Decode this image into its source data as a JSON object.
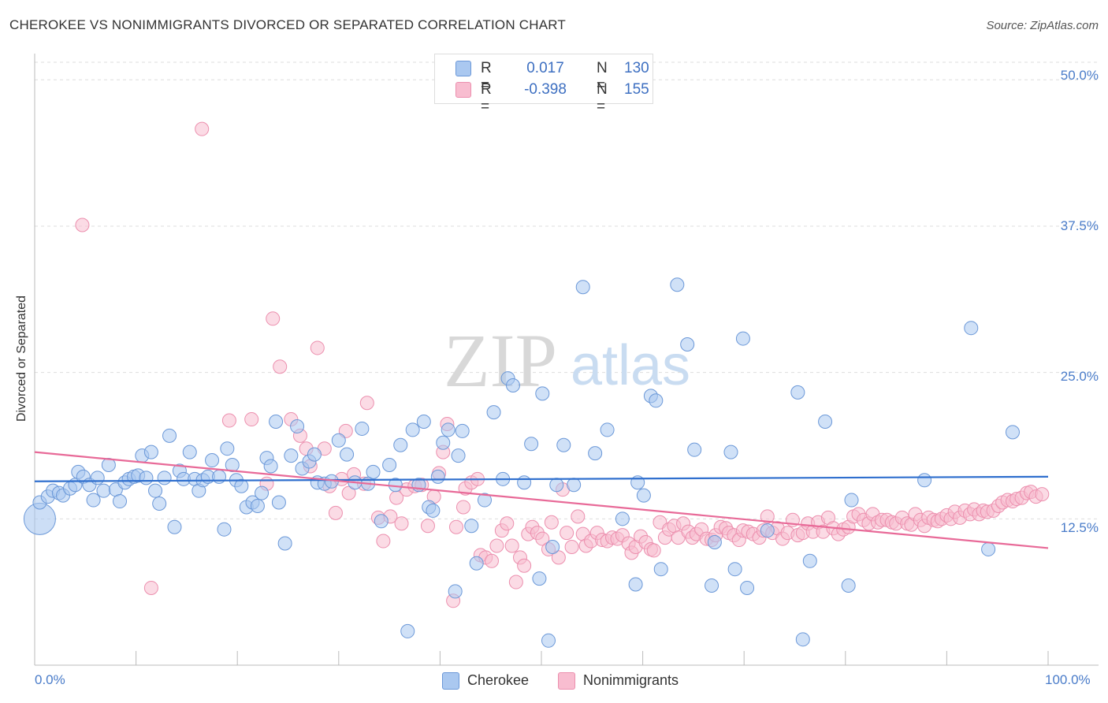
{
  "title": "CHEROKEE VS NONIMMIGRANTS DIVORCED OR SEPARATED CORRELATION CHART",
  "source": "Source: ZipAtlas.com",
  "watermark": {
    "zip": "ZIP",
    "atlas": "atlas"
  },
  "legend": {
    "r_label": "R =",
    "n_label": "N =",
    "rows": [
      {
        "r": "0.017",
        "n": "130"
      },
      {
        "r": "-0.398",
        "n": "155"
      }
    ]
  },
  "colors": {
    "cherokee_fill": "#aac8f0",
    "cherokee_stroke": "#6b98d8",
    "cherokee_line": "#2f6fce",
    "nonimm_fill": "#f8bdd0",
    "nonimm_stroke": "#ec8fae",
    "nonimm_line": "#e86a98",
    "tick_text": "#4a7cc9",
    "grid": "#dddddd"
  },
  "chart_data": {
    "type": "scatter",
    "title": "CHEROKEE VS NONIMMIGRANTS DIVORCED OR SEPARATED CORRELATION CHART",
    "xlabel": "",
    "ylabel": "Divorced or Separated",
    "xlim": [
      0,
      100
    ],
    "ylim": [
      0,
      51.5
    ],
    "x_tick_labels": [
      "0.0%",
      "100.0%"
    ],
    "y_ticks": [
      12.5,
      25.0,
      37.5,
      50.0
    ],
    "y_tick_labels": [
      "12.5%",
      "25.0%",
      "37.5%",
      "50.0%"
    ],
    "grid": "horizontal dashed",
    "legend_position": "top-center",
    "series": [
      {
        "name": "Cherokee",
        "r": 0.017,
        "n": 130,
        "trend": [
          [
            0,
            15.7
          ],
          [
            100,
            16.1
          ]
        ],
        "points": [
          [
            0.5,
            13.9
          ],
          [
            1.3,
            14.4
          ],
          [
            1.8,
            14.9
          ],
          [
            2.4,
            14.7
          ],
          [
            2.8,
            14.5
          ],
          [
            3.5,
            15.1
          ],
          [
            4,
            15.4
          ],
          [
            4.3,
            16.5
          ],
          [
            4.8,
            16.1
          ],
          [
            5.4,
            15.4
          ],
          [
            5.8,
            14.1
          ],
          [
            6.2,
            16
          ],
          [
            6.8,
            14.9
          ],
          [
            7.3,
            17.1
          ],
          [
            8,
            15
          ],
          [
            8.4,
            14
          ],
          [
            8.9,
            15.6
          ],
          [
            9.3,
            15.9
          ],
          [
            9.8,
            16.1
          ],
          [
            10.2,
            16.2
          ],
          [
            10.6,
            17.9
          ],
          [
            11,
            16
          ],
          [
            11.5,
            18.2
          ],
          [
            11.9,
            14.9
          ],
          [
            12.3,
            13.8
          ],
          [
            12.8,
            16
          ],
          [
            13.3,
            19.6
          ],
          [
            13.8,
            11.8
          ],
          [
            14.3,
            16.6
          ],
          [
            14.7,
            15.9
          ],
          [
            15.3,
            18.2
          ],
          [
            15.8,
            15.9
          ],
          [
            16.2,
            14.9
          ],
          [
            16.6,
            15.8
          ],
          [
            17.1,
            16.1
          ],
          [
            17.5,
            17.5
          ],
          [
            18.2,
            16.1
          ],
          [
            18.7,
            11.6
          ],
          [
            19,
            18.5
          ],
          [
            19.5,
            17.1
          ],
          [
            19.9,
            15.8
          ],
          [
            20.4,
            15.3
          ],
          [
            20.9,
            13.5
          ],
          [
            21.5,
            13.9
          ],
          [
            22,
            13.6
          ],
          [
            22.4,
            14.7
          ],
          [
            22.9,
            17.7
          ],
          [
            23.3,
            17
          ],
          [
            23.8,
            20.8
          ],
          [
            24.1,
            13.9
          ],
          [
            24.7,
            10.4
          ],
          [
            25.3,
            17.9
          ],
          [
            25.9,
            20.4
          ],
          [
            26.4,
            16.8
          ],
          [
            27.1,
            17.4
          ],
          [
            27.6,
            18
          ],
          [
            27.9,
            15.6
          ],
          [
            28.6,
            15.5
          ],
          [
            29.3,
            15.7
          ],
          [
            30,
            19.2
          ],
          [
            30.8,
            18
          ],
          [
            31.6,
            15.6
          ],
          [
            32.3,
            20.2
          ],
          [
            32.9,
            15.5
          ],
          [
            33.4,
            16.5
          ],
          [
            34.2,
            12.3
          ],
          [
            35,
            17.1
          ],
          [
            35.6,
            15.4
          ],
          [
            36.1,
            18.8
          ],
          [
            36.8,
            2.9
          ],
          [
            37.3,
            20.1
          ],
          [
            37.9,
            15.4
          ],
          [
            38.4,
            20.8
          ],
          [
            38.9,
            13.5
          ],
          [
            39.3,
            13.2
          ],
          [
            39.8,
            16.1
          ],
          [
            40.3,
            19
          ],
          [
            40.8,
            20.1
          ],
          [
            41.5,
            6.3
          ],
          [
            41.8,
            17.9
          ],
          [
            42.2,
            20
          ],
          [
            43.1,
            11.9
          ],
          [
            43.6,
            8.7
          ],
          [
            44.4,
            14.1
          ],
          [
            45.3,
            21.6
          ],
          [
            46.2,
            15.9
          ],
          [
            46.7,
            24.5
          ],
          [
            47.2,
            23.9
          ],
          [
            48.3,
            15.6
          ],
          [
            49,
            18.9
          ],
          [
            49.8,
            7.4
          ],
          [
            50.1,
            23.2
          ],
          [
            50.7,
            2.1
          ],
          [
            51.1,
            10.1
          ],
          [
            51.5,
            15.4
          ],
          [
            52.2,
            18.8
          ],
          [
            53.2,
            15.4
          ],
          [
            54.1,
            32.3
          ],
          [
            55.3,
            18.1
          ],
          [
            56.5,
            20.1
          ],
          [
            58,
            12.5
          ],
          [
            59.3,
            6.9
          ],
          [
            59.5,
            15.6
          ],
          [
            60.1,
            14.5
          ],
          [
            60.8,
            23
          ],
          [
            61.3,
            22.6
          ],
          [
            61.8,
            8.2
          ],
          [
            63.4,
            32.5
          ],
          [
            64.4,
            27.4
          ],
          [
            65.1,
            18.4
          ],
          [
            66.8,
            6.8
          ],
          [
            67.1,
            10.5
          ],
          [
            68.7,
            18.2
          ],
          [
            69.1,
            8.2
          ],
          [
            69.9,
            27.9
          ],
          [
            70.3,
            6.6
          ],
          [
            72.3,
            11.5
          ],
          [
            75.3,
            23.3
          ],
          [
            75.8,
            2.2
          ],
          [
            76.5,
            8.9
          ],
          [
            78,
            20.8
          ],
          [
            80.3,
            6.8
          ],
          [
            80.6,
            14.1
          ],
          [
            87.8,
            15.8
          ],
          [
            92.4,
            28.8
          ],
          [
            94.1,
            9.9
          ],
          [
            96.5,
            19.9
          ]
        ],
        "big_point": [
          0.5,
          12.5
        ]
      },
      {
        "name": "Nonimmigrants",
        "r": -0.398,
        "n": 155,
        "trend": [
          [
            0,
            18.2
          ],
          [
            100,
            10
          ]
        ],
        "points": [
          [
            4.7,
            37.6
          ],
          [
            11.5,
            6.6
          ],
          [
            16.5,
            45.8
          ],
          [
            19.2,
            20.9
          ],
          [
            21.4,
            21
          ],
          [
            22.9,
            15.5
          ],
          [
            23.5,
            29.6
          ],
          [
            24.2,
            25.5
          ],
          [
            25.3,
            21
          ],
          [
            26.2,
            19.6
          ],
          [
            26.8,
            18.5
          ],
          [
            27.2,
            17
          ],
          [
            27.9,
            27.1
          ],
          [
            28.6,
            18.5
          ],
          [
            29.1,
            15.3
          ],
          [
            29.7,
            13
          ],
          [
            30.3,
            15.9
          ],
          [
            30.7,
            20
          ],
          [
            31,
            14.7
          ],
          [
            31.5,
            16.3
          ],
          [
            32.5,
            15.5
          ],
          [
            32.8,
            22.4
          ],
          [
            33.9,
            12.6
          ],
          [
            34.4,
            10.6
          ],
          [
            35.1,
            12.7
          ],
          [
            35.7,
            14.3
          ],
          [
            36.2,
            12.1
          ],
          [
            36.7,
            15
          ],
          [
            37.5,
            15.3
          ],
          [
            38.2,
            15.4
          ],
          [
            38.8,
            11.9
          ],
          [
            39.4,
            14.4
          ],
          [
            39.9,
            16.4
          ],
          [
            40.3,
            18.2
          ],
          [
            40.7,
            20.6
          ],
          [
            41.3,
            5.5
          ],
          [
            41.6,
            11.8
          ],
          [
            42.3,
            13.5
          ],
          [
            42.5,
            15.1
          ],
          [
            43.1,
            15.6
          ],
          [
            43.7,
            15.9
          ],
          [
            44,
            9.4
          ],
          [
            44.5,
            9.2
          ],
          [
            45.1,
            8.9
          ],
          [
            45.6,
            10.2
          ],
          [
            46.1,
            11.5
          ],
          [
            46.6,
            12.1
          ],
          [
            47.1,
            10.2
          ],
          [
            47.5,
            7.1
          ],
          [
            47.9,
            9.2
          ],
          [
            48.3,
            8.5
          ],
          [
            48.7,
            11.2
          ],
          [
            49.1,
            11.8
          ],
          [
            49.6,
            11.3
          ],
          [
            50.1,
            10.8
          ],
          [
            50.7,
            9.9
          ],
          [
            51,
            12.2
          ],
          [
            51.7,
            9.2
          ],
          [
            52.1,
            15
          ],
          [
            52.5,
            11.3
          ],
          [
            53,
            10.1
          ],
          [
            53.6,
            12.7
          ],
          [
            54.1,
            11.2
          ],
          [
            54.4,
            10.2
          ],
          [
            54.9,
            10.6
          ],
          [
            55.5,
            11.3
          ],
          [
            56,
            10.7
          ],
          [
            56.5,
            10.6
          ],
          [
            57,
            10.9
          ],
          [
            57.5,
            10.8
          ],
          [
            58,
            11.1
          ],
          [
            58.6,
            10.4
          ],
          [
            58.9,
            9.6
          ],
          [
            59.3,
            10.1
          ],
          [
            59.8,
            11
          ],
          [
            60.3,
            10.5
          ],
          [
            60.8,
            9.9
          ],
          [
            61.1,
            9.8
          ],
          [
            61.7,
            12.2
          ],
          [
            62.2,
            10.9
          ],
          [
            62.6,
            11.6
          ],
          [
            63.1,
            11.9
          ],
          [
            63.5,
            10.9
          ],
          [
            64,
            12.1
          ],
          [
            64.5,
            11.4
          ],
          [
            64.9,
            10.9
          ],
          [
            65.3,
            11.2
          ],
          [
            65.8,
            11.6
          ],
          [
            66.3,
            10.8
          ],
          [
            66.8,
            10.7
          ],
          [
            67.2,
            11.1
          ],
          [
            67.7,
            11.8
          ],
          [
            68.2,
            11.7
          ],
          [
            68.5,
            11.3
          ],
          [
            69,
            11.1
          ],
          [
            69.5,
            10.7
          ],
          [
            69.9,
            11.5
          ],
          [
            70.4,
            11.4
          ],
          [
            70.9,
            11.2
          ],
          [
            71.5,
            10.9
          ],
          [
            71.9,
            11.5
          ],
          [
            72.3,
            12.7
          ],
          [
            72.8,
            11.3
          ],
          [
            73.3,
            11.7
          ],
          [
            73.8,
            10.8
          ],
          [
            74.3,
            11.3
          ],
          [
            74.8,
            12.4
          ],
          [
            75.3,
            11.1
          ],
          [
            75.8,
            11.3
          ],
          [
            76.3,
            12.1
          ],
          [
            76.8,
            11.4
          ],
          [
            77.3,
            12.2
          ],
          [
            77.8,
            11.4
          ],
          [
            78.3,
            12.6
          ],
          [
            78.8,
            11.7
          ],
          [
            79.3,
            11.2
          ],
          [
            79.8,
            11.6
          ],
          [
            80.3,
            11.8
          ],
          [
            80.8,
            12.7
          ],
          [
            81.3,
            12.9
          ],
          [
            81.8,
            12.4
          ],
          [
            82.3,
            12.1
          ],
          [
            82.7,
            12.9
          ],
          [
            83.2,
            12.2
          ],
          [
            83.6,
            12.4
          ],
          [
            84.1,
            12.4
          ],
          [
            84.6,
            12.2
          ],
          [
            85,
            12.1
          ],
          [
            85.6,
            12.6
          ],
          [
            86.1,
            12.1
          ],
          [
            86.5,
            12
          ],
          [
            86.9,
            12.9
          ],
          [
            87.4,
            12.4
          ],
          [
            87.8,
            11.9
          ],
          [
            88.2,
            12.6
          ],
          [
            88.7,
            12.4
          ],
          [
            89.1,
            12.3
          ],
          [
            89.5,
            12.5
          ],
          [
            90,
            12.8
          ],
          [
            90.4,
            12.5
          ],
          [
            90.8,
            13.1
          ],
          [
            91.3,
            12.6
          ],
          [
            91.8,
            13.2
          ],
          [
            92.3,
            12.9
          ],
          [
            92.7,
            13.3
          ],
          [
            93.2,
            12.9
          ],
          [
            93.6,
            13.2
          ],
          [
            94,
            13.1
          ],
          [
            94.6,
            13.2
          ],
          [
            95.1,
            13.6
          ],
          [
            95.5,
            13.9
          ],
          [
            96,
            14.1
          ],
          [
            96.5,
            14
          ],
          [
            96.9,
            14.2
          ],
          [
            97.4,
            14.3
          ],
          [
            97.9,
            14.7
          ],
          [
            98.3,
            14.8
          ],
          [
            98.8,
            14.4
          ],
          [
            99.4,
            14.6
          ]
        ]
      }
    ]
  },
  "bottom_legend": [
    "Cherokee",
    "Nonimmigrants"
  ]
}
